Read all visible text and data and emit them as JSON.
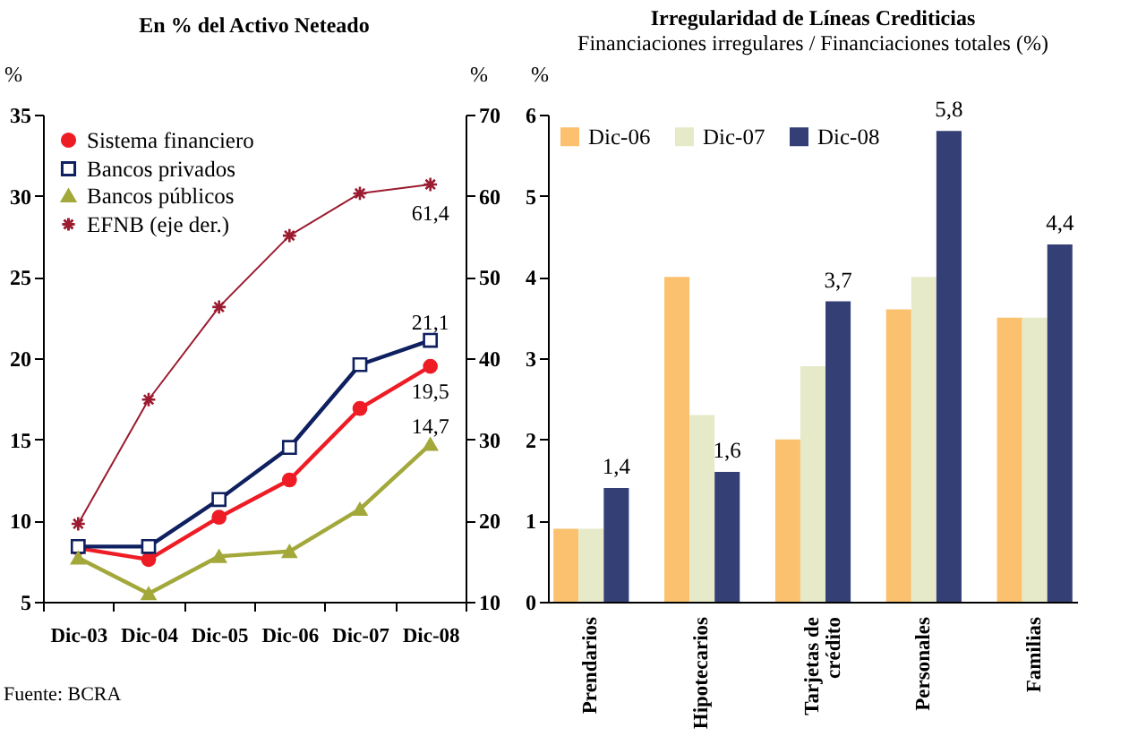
{
  "chart_data": [
    {
      "type": "line",
      "title": "En % del Activo Neteado",
      "categories": [
        "Dic-03",
        "Dic-04",
        "Dic-05",
        "Dic-06",
        "Dic-07",
        "Dic-08"
      ],
      "series": [
        {
          "name": "Sistema financiero",
          "color": "#ee1c25",
          "marker": "circle",
          "values": [
            8.3,
            7.6,
            10.2,
            12.5,
            16.9,
            19.5
          ],
          "value_labels": [
            null,
            null,
            null,
            null,
            null,
            "19,5"
          ]
        },
        {
          "name": "Bancos privados",
          "color": "#0f2060",
          "marker": "square",
          "values": [
            8.4,
            8.4,
            11.3,
            14.5,
            19.6,
            21.1
          ],
          "value_labels": [
            null,
            null,
            null,
            null,
            null,
            "21,1"
          ]
        },
        {
          "name": "Bancos públicos",
          "color": "#a3a83a",
          "marker": "triangle",
          "values": [
            7.7,
            5.5,
            7.8,
            8.1,
            10.7,
            14.7
          ],
          "value_labels": [
            null,
            null,
            null,
            null,
            null,
            "14,7"
          ]
        },
        {
          "name": "EFNB (eje der.)",
          "color": "#9b1b30",
          "marker": "cross",
          "axis": "y2",
          "values": [
            19.6,
            34.9,
            46.3,
            55.1,
            60.3,
            61.4
          ],
          "value_labels": [
            null,
            null,
            null,
            null,
            null,
            "61,4"
          ]
        }
      ],
      "ylabel": "%",
      "y2label": "%",
      "ylim": [
        5,
        35
      ],
      "yticks": [
        5,
        10,
        15,
        20,
        25,
        30,
        35
      ],
      "y2lim": [
        10,
        70
      ],
      "y2ticks": [
        10,
        20,
        30,
        40,
        50,
        60,
        70
      ],
      "grid": false,
      "legend": "top left",
      "annotations": [
        "Fuente: BCRA"
      ]
    },
    {
      "type": "bar",
      "title": "Irregularidad de Líneas Crediticias",
      "subtitle": "Financiaciones irregulares / Financiaciones totales (%)",
      "categories": [
        "Prendarios",
        "Hipotecarios",
        "Tarjetas de crédito",
        "Personales",
        "Familias"
      ],
      "series": [
        {
          "name": "Dic-06",
          "color": "#fbc16e",
          "values": [
            0.9,
            4.0,
            2.0,
            3.6,
            3.5
          ]
        },
        {
          "name": "Dic-07",
          "color": "#e7eac8",
          "values": [
            0.9,
            2.3,
            2.9,
            4.0,
            3.5
          ]
        },
        {
          "name": "Dic-08",
          "color": "#333f75",
          "values": [
            1.4,
            1.6,
            3.7,
            5.8,
            4.4
          ],
          "value_labels": [
            "1,4",
            "1,6",
            "3,7",
            "5,8",
            "4,4"
          ]
        }
      ],
      "ylabel": "%",
      "ylim": [
        0,
        6
      ],
      "yticks": [
        0,
        1,
        2,
        3,
        4,
        5,
        6
      ],
      "grid": false,
      "legend": "top left"
    }
  ]
}
